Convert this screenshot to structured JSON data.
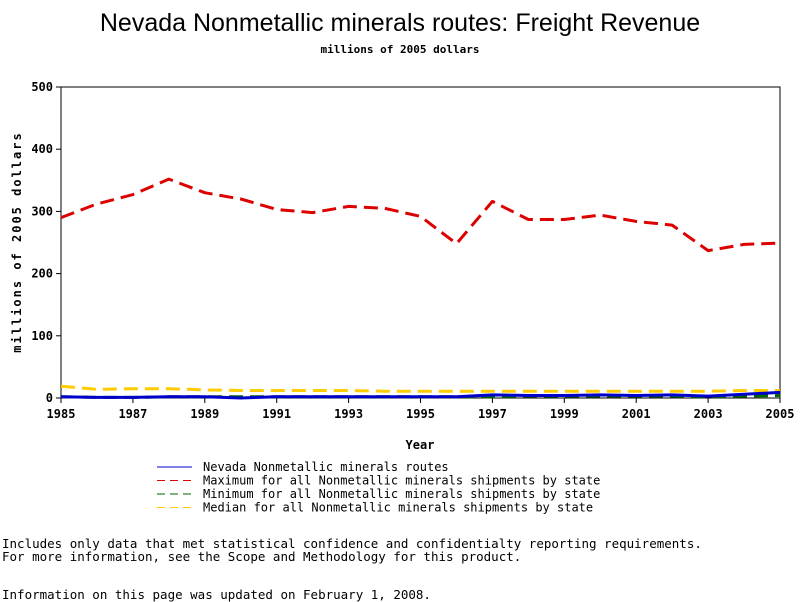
{
  "chart_data": {
    "type": "line",
    "title": "Nevada Nonmetallic minerals routes: Freight Revenue",
    "subtitle": "millions of 2005 dollars",
    "xlabel": "Year",
    "ylabel": "millions of 2005 dollars",
    "xlim": [
      1985,
      2005
    ],
    "ylim": [
      0,
      500
    ],
    "x_ticks": [
      "1985",
      "1987",
      "1989",
      "1991",
      "1993",
      "1995",
      "1997",
      "1999",
      "2001",
      "2003",
      "2005"
    ],
    "y_ticks": [
      "0",
      "100",
      "200",
      "300",
      "400",
      "500"
    ],
    "grid": false,
    "legend_position": "bottom",
    "x": [
      1985,
      1986,
      1987,
      1988,
      1989,
      1990,
      1991,
      1992,
      1993,
      1994,
      1995,
      1996,
      1997,
      1998,
      1999,
      2000,
      2001,
      2002,
      2003,
      2004,
      2005
    ],
    "series": [
      {
        "name": "Nevada Nonmetallic minerals routes",
        "color": "#0000cc",
        "dash": "solid",
        "values": [
          2,
          1,
          1,
          2,
          2,
          0,
          2,
          2,
          2,
          2,
          2,
          2,
          5,
          4,
          4,
          5,
          4,
          5,
          3,
          6,
          9
        ]
      },
      {
        "name": "Maximum for all Nonmetallic minerals shipments by state",
        "color": "#dd0000",
        "dash": "dashed",
        "values": [
          290,
          312,
          327,
          352,
          330,
          320,
          303,
          298,
          308,
          305,
          292,
          248,
          316,
          287,
          287,
          294,
          284,
          278,
          237,
          247,
          249
        ]
      },
      {
        "name": "Minimum for all Nonmetallic minerals shipments by state",
        "color": "#006600",
        "dash": "dashed",
        "values": [
          2,
          1,
          1,
          2,
          2,
          2,
          2,
          2,
          2,
          2,
          2,
          2,
          2,
          3,
          3,
          3,
          3,
          3,
          2,
          3,
          4
        ]
      },
      {
        "name": "Median for all Nonmetallic minerals shipments by state",
        "color": "#ffcc00",
        "dash": "dashed",
        "values": [
          19,
          14,
          15,
          15,
          13,
          12,
          12,
          12,
          12,
          11,
          11,
          11,
          11,
          11,
          11,
          11,
          11,
          11,
          11,
          12,
          12
        ]
      }
    ]
  },
  "notes": {
    "line1": "Includes only data that met statistical confidence and confidentialty reporting requirements.",
    "line2": "For more information, see the Scope and Methodology for this product.",
    "updated": "Information on this page was updated on February 1, 2008."
  }
}
